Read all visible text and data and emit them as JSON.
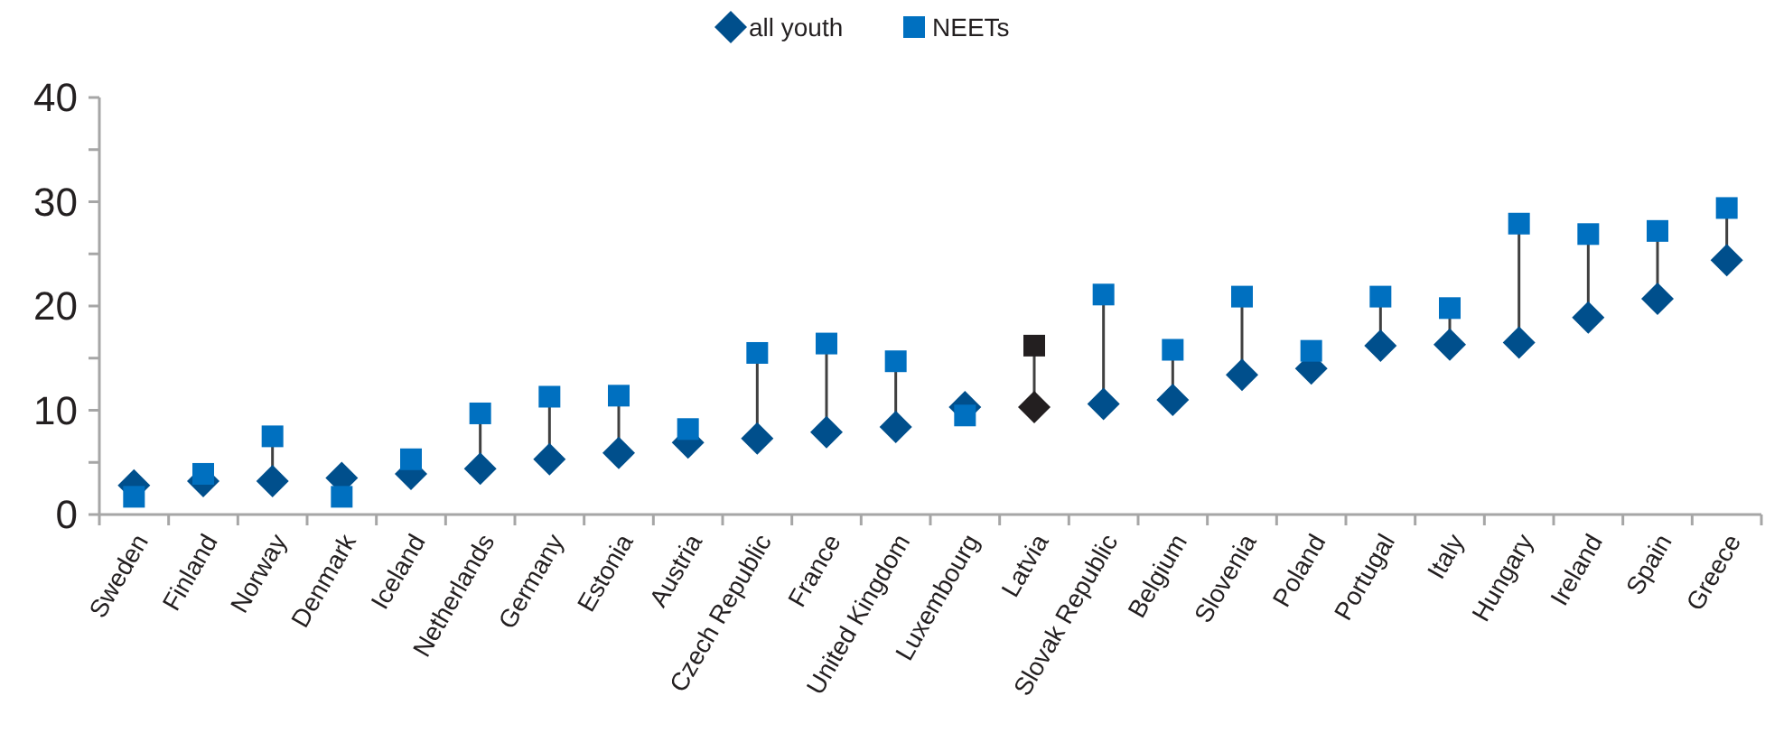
{
  "chart_data": {
    "type": "scatter",
    "categories": [
      "Sweden",
      "Finland",
      "Norway",
      "Denmark",
      "Iceland",
      "Netherlands",
      "Germany",
      "Estonia",
      "Austria",
      "Czech Republic",
      "France",
      "United Kingdom",
      "Luxembourg",
      "Latvia",
      "Slovak Republic",
      "Belgium",
      "Slovenia",
      "Poland",
      "Portugal",
      "Italy",
      "Hungary",
      "Ireland",
      "Spain",
      "Greece"
    ],
    "series": [
      {
        "name": "all youth",
        "color": "#004f8c",
        "marker": "diamond",
        "colors": [
          "#004f8c",
          "#004f8c",
          "#004f8c",
          "#004f8c",
          "#004f8c",
          "#004f8c",
          "#004f8c",
          "#004f8c",
          "#004f8c",
          "#004f8c",
          "#004f8c",
          "#004f8c",
          "#004f8c",
          "#231f20",
          "#004f8c",
          "#004f8c",
          "#004f8c",
          "#004f8c",
          "#004f8c",
          "#004f8c",
          "#004f8c",
          "#004f8c",
          "#004f8c",
          "#004f8c"
        ],
        "values": [
          2.8,
          3.2,
          3.2,
          3.5,
          3.9,
          4.4,
          5.3,
          5.9,
          6.9,
          7.3,
          7.9,
          8.4,
          10.3,
          10.3,
          10.6,
          11.0,
          13.4,
          14.0,
          16.2,
          16.3,
          16.5,
          18.9,
          20.7,
          24.4
        ]
      },
      {
        "name": "NEETs",
        "color": "#0070c0",
        "marker": "square",
        "colors": [
          "#0070c0",
          "#0070c0",
          "#0070c0",
          "#0070c0",
          "#0070c0",
          "#0070c0",
          "#0070c0",
          "#0070c0",
          "#0070c0",
          "#0070c0",
          "#0070c0",
          "#0070c0",
          "#0070c0",
          "#231f20",
          "#0070c0",
          "#0070c0",
          "#0070c0",
          "#0070c0",
          "#0070c0",
          "#0070c0",
          "#0070c0",
          "#0070c0",
          "#0070c0",
          "#0070c0"
        ],
        "values": [
          1.7,
          3.9,
          7.5,
          1.7,
          5.3,
          9.7,
          11.3,
          11.4,
          8.2,
          15.5,
          16.4,
          14.7,
          9.5,
          16.2,
          21.1,
          15.8,
          20.9,
          15.7,
          20.9,
          19.8,
          27.9,
          26.9,
          27.2,
          29.4
        ]
      }
    ],
    "ylim": [
      0,
      40
    ],
    "yticks": [
      0,
      {
        "value": 5,
        "label": null
      },
      10,
      {
        "value": 15,
        "label": null
      },
      20,
      {
        "value": 25,
        "label": null
      },
      30,
      {
        "value": 35,
        "label": null
      },
      40
    ],
    "grid": false,
    "legend": "top"
  }
}
